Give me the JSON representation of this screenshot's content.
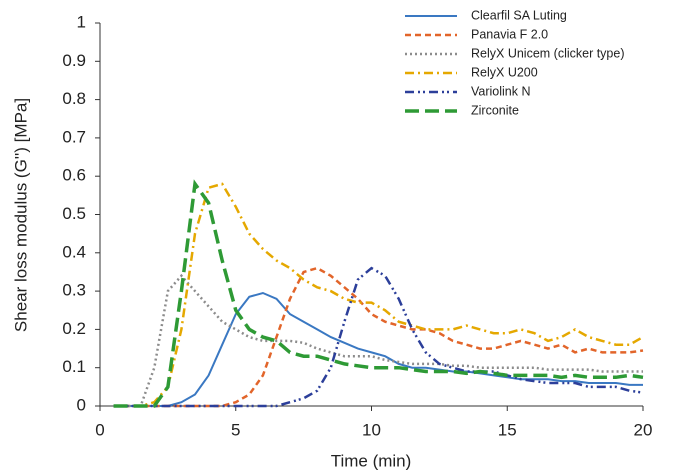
{
  "chart_data": {
    "type": "line",
    "xlabel": "Time (min)",
    "ylabel": "Shear loss modulus (G'') [MPa]",
    "x": [
      0.5,
      1,
      1.5,
      2,
      2.5,
      3,
      3.5,
      4,
      4.5,
      5,
      5.5,
      6,
      6.5,
      7,
      7.5,
      8,
      8.5,
      9,
      9.5,
      10,
      10.5,
      11,
      11.5,
      12,
      12.5,
      13,
      13.5,
      14,
      14.5,
      15,
      15.5,
      16,
      16.5,
      17,
      17.5,
      18,
      18.5,
      19,
      19.5,
      20
    ],
    "series": [
      {
        "name": "Clearfil SA Luting",
        "color": "#3a78c2",
        "dash": "solid",
        "values": [
          0,
          0,
          0,
          0,
          0,
          0.01,
          0.03,
          0.08,
          0.16,
          0.24,
          0.285,
          0.295,
          0.28,
          0.24,
          0.22,
          0.2,
          0.18,
          0.165,
          0.15,
          0.14,
          0.13,
          0.11,
          0.1,
          0.1,
          0.095,
          0.09,
          0.09,
          0.085,
          0.08,
          0.075,
          0.07,
          0.07,
          0.07,
          0.065,
          0.065,
          0.06,
          0.06,
          0.06,
          0.055,
          0.055
        ]
      },
      {
        "name": "Panavia F 2.0",
        "color": "#e2652a",
        "dash": "dashed",
        "values": [
          0,
          0,
          0,
          0,
          0,
          0,
          0,
          0,
          0,
          0.01,
          0.03,
          0.08,
          0.18,
          0.28,
          0.35,
          0.36,
          0.34,
          0.31,
          0.28,
          0.24,
          0.22,
          0.21,
          0.2,
          0.2,
          0.19,
          0.17,
          0.16,
          0.15,
          0.15,
          0.16,
          0.17,
          0.16,
          0.15,
          0.16,
          0.14,
          0.15,
          0.14,
          0.14,
          0.14,
          0.145
        ]
      },
      {
        "name": "RelyX Unicem (clicker type)",
        "color": "#8c8c8c",
        "dash": "dotted",
        "values": [
          0,
          0,
          0,
          0.1,
          0.3,
          0.34,
          0.3,
          0.26,
          0.22,
          0.2,
          0.18,
          0.17,
          0.17,
          0.17,
          0.165,
          0.15,
          0.14,
          0.13,
          0.13,
          0.13,
          0.12,
          0.115,
          0.11,
          0.11,
          0.11,
          0.105,
          0.105,
          0.1,
          0.1,
          0.1,
          0.1,
          0.1,
          0.095,
          0.095,
          0.095,
          0.095,
          0.09,
          0.09,
          0.09,
          0.09
        ]
      },
      {
        "name": "RelyX U200",
        "color": "#e5a800",
        "dash": "dashdot",
        "values": [
          0,
          0,
          0,
          0.01,
          0.05,
          0.2,
          0.45,
          0.57,
          0.58,
          0.52,
          0.45,
          0.41,
          0.38,
          0.36,
          0.33,
          0.31,
          0.3,
          0.28,
          0.27,
          0.27,
          0.25,
          0.22,
          0.21,
          0.2,
          0.2,
          0.2,
          0.21,
          0.2,
          0.19,
          0.19,
          0.2,
          0.19,
          0.17,
          0.18,
          0.2,
          0.18,
          0.17,
          0.16,
          0.16,
          0.18
        ]
      },
      {
        "name": "Variolink N",
        "color": "#2c3f9a",
        "dash": "dashdotdot",
        "values": [
          0,
          0,
          0,
          0,
          0,
          0,
          0,
          0,
          0,
          0,
          0,
          0,
          0,
          0.01,
          0.02,
          0.04,
          0.1,
          0.22,
          0.33,
          0.36,
          0.34,
          0.28,
          0.2,
          0.14,
          0.11,
          0.1,
          0.09,
          0.09,
          0.09,
          0.08,
          0.07,
          0.065,
          0.06,
          0.06,
          0.06,
          0.05,
          0.05,
          0.05,
          0.04,
          0.035
        ]
      },
      {
        "name": "Zirconite",
        "color": "#2e9a35",
        "dash": "longdash",
        "values": [
          0,
          0,
          0,
          0,
          0.05,
          0.3,
          0.58,
          0.53,
          0.38,
          0.25,
          0.2,
          0.18,
          0.17,
          0.14,
          0.13,
          0.13,
          0.12,
          0.11,
          0.105,
          0.1,
          0.1,
          0.1,
          0.095,
          0.09,
          0.09,
          0.09,
          0.085,
          0.09,
          0.085,
          0.08,
          0.08,
          0.08,
          0.08,
          0.075,
          0.08,
          0.075,
          0.075,
          0.075,
          0.08,
          0.075
        ]
      }
    ],
    "xlim": [
      0,
      20
    ],
    "ylim": [
      0,
      1
    ],
    "xticks": [
      0,
      5,
      10,
      15,
      20
    ],
    "yticks": [
      0,
      0.1,
      0.2,
      0.3,
      0.4,
      0.5,
      0.6,
      0.7,
      0.8,
      0.9,
      1
    ],
    "grid": false,
    "legend": "upper right"
  }
}
